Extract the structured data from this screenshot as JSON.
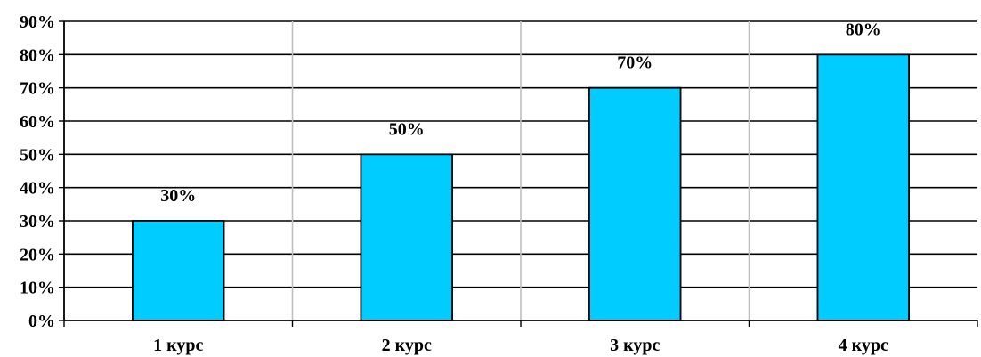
{
  "chart_data": {
    "type": "bar",
    "categories": [
      "1 курс",
      "2 курс",
      "3 курс",
      "4 курс"
    ],
    "values": [
      30,
      50,
      70,
      80
    ],
    "data_labels": [
      "30%",
      "50%",
      "70%",
      "80%"
    ],
    "title": "",
    "xlabel": "",
    "ylabel": "",
    "ylim": [
      0,
      90
    ],
    "yticks": [
      0,
      10,
      20,
      30,
      40,
      50,
      60,
      70,
      80,
      90
    ],
    "ytick_labels": [
      "0%",
      "10%",
      "20%",
      "30%",
      "40%",
      "50%",
      "60%",
      "70%",
      "80%",
      "90%"
    ],
    "horizontal_grid": true,
    "vertical_separators": true,
    "bar_color": "#00CCFF",
    "bar_edge_color": "#000000",
    "grid_color": "#000000",
    "separator_color": "#C0C0C0"
  }
}
